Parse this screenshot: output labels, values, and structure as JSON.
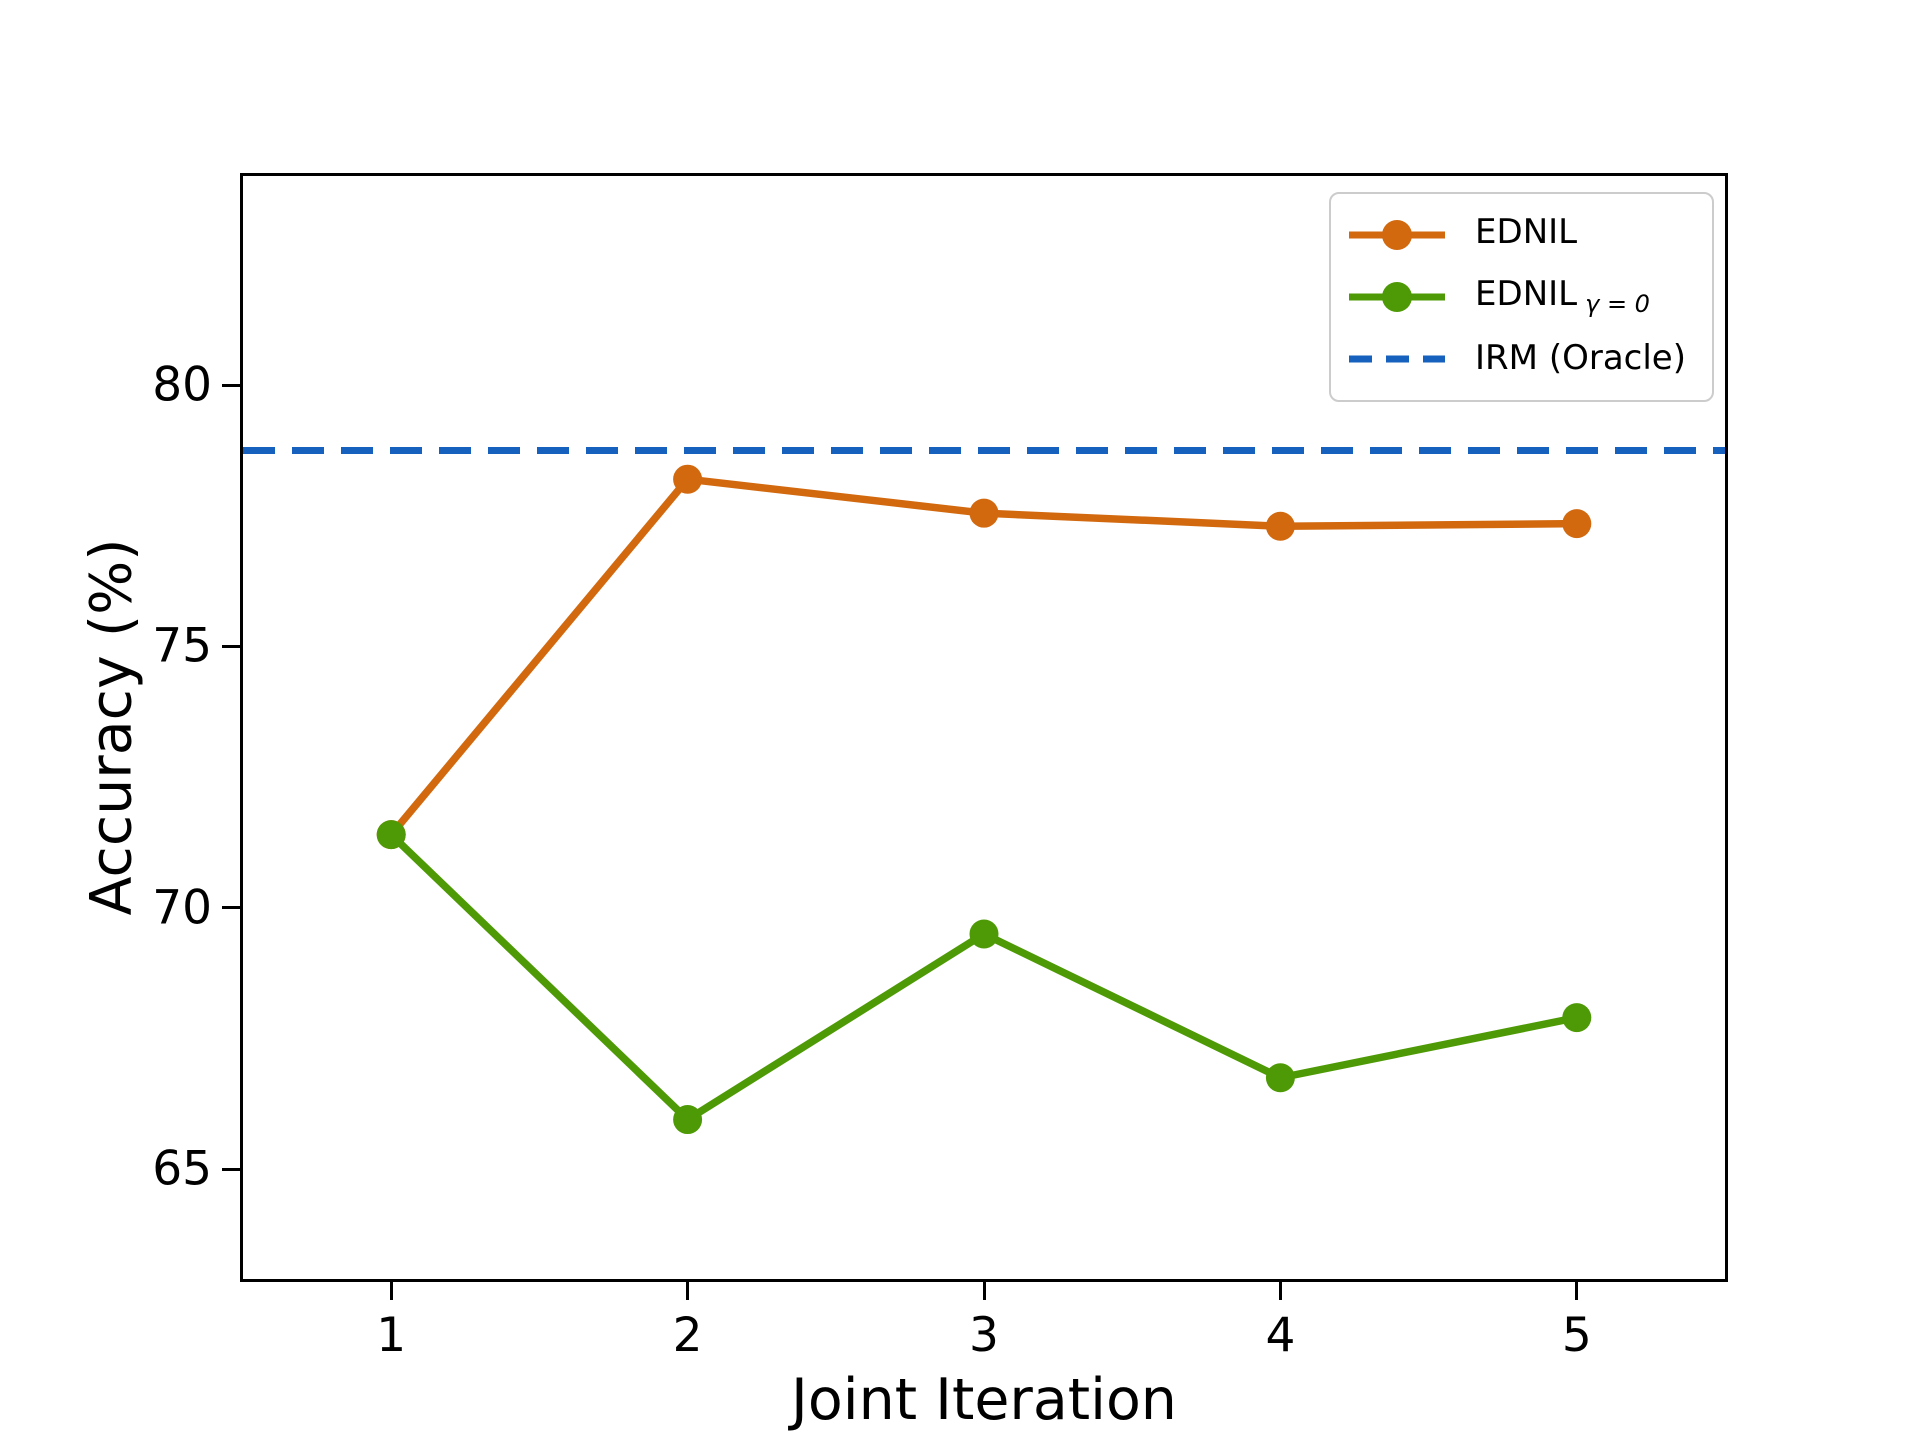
{
  "chart_data": {
    "type": "line",
    "title": "",
    "xlabel": "Joint Iteration",
    "ylabel": "Accuracy (%)",
    "x": [
      1,
      2,
      3,
      4,
      5
    ],
    "xticks": [
      "1",
      "2",
      "3",
      "4",
      "5"
    ],
    "xtick_values": [
      1,
      2,
      3,
      4,
      5
    ],
    "yticks": [
      "65",
      "70",
      "75",
      "80"
    ],
    "ytick_values": [
      65,
      70,
      75,
      80
    ],
    "xlim": [
      0.5,
      5.5
    ],
    "ylim": [
      62.9,
      84.0
    ],
    "grid": false,
    "legend_position": "upper right",
    "series": [
      {
        "name": "EDNIL",
        "subscript": "",
        "color": "#d2690f",
        "line": "solid",
        "marker": "circle",
        "values": [
          71.4,
          78.2,
          77.55,
          77.3,
          77.35
        ]
      },
      {
        "name": "EDNIL",
        "subscript": "γ = 0",
        "color": "#4e9a06",
        "line": "solid",
        "marker": "circle",
        "values": [
          71.4,
          65.95,
          69.5,
          66.75,
          67.9
        ]
      },
      {
        "name": "IRM (Oracle)",
        "subscript": "",
        "color": "#1561bd",
        "line": "dashed",
        "marker": "none",
        "hline": 78.75
      }
    ]
  }
}
